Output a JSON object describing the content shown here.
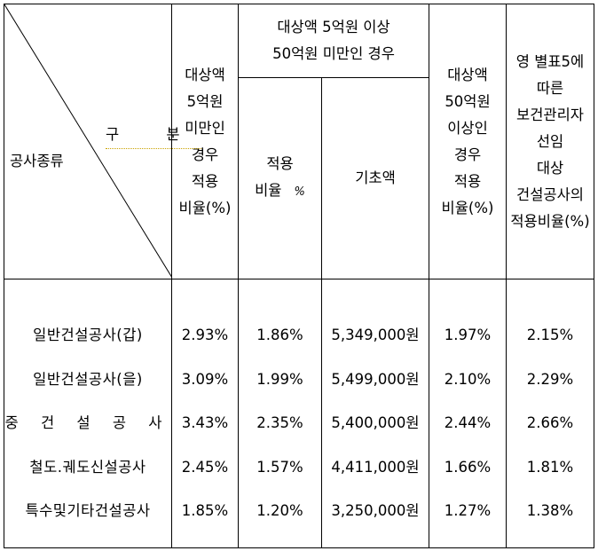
{
  "header": {
    "corner_top": "구 분",
    "corner_bottom": "공사종류",
    "col_under5": "대상액\n5억원\n미만인\n경우\n적용\n비율(%)",
    "col_5to50_group": "대상액 5억원 이상\n50억원 미만인 경우",
    "col_5to50_rate": "적용",
    "col_5to50_rate_sub": "비율",
    "col_5to50_rate_mark": "%",
    "col_5to50_base": "기초액",
    "col_over50": "대상액\n50억원\n이상인\n경우\n적용\n비율(%)",
    "col_annex5": "영 별표5에\n따른\n보건관리자\n선임\n대상\n건설공사의\n적용비율(%)"
  },
  "rows": [
    {
      "category": "일반건설공사(갑)",
      "under5": "2.93%",
      "rate5to50": "1.86%",
      "base": "5,349,000원",
      "over50": "1.97%",
      "annex5": "2.15%"
    },
    {
      "category": "일반건설공사(을)",
      "under5": "3.09%",
      "rate5to50": "1.99%",
      "base": "5,499,000원",
      "over50": "2.10%",
      "annex5": "2.29%"
    },
    {
      "category": "중 건 설 공 사",
      "under5": "3.43%",
      "rate5to50": "2.35%",
      "base": "5,400,000원",
      "over50": "2.44%",
      "annex5": "2.66%"
    },
    {
      "category": "철도.궤도신설공사",
      "under5": "2.45%",
      "rate5to50": "1.57%",
      "base": "4,411,000원",
      "over50": "1.66%",
      "annex5": "1.81%"
    },
    {
      "category": "특수및기타건설공사",
      "under5": "1.85%",
      "rate5to50": "1.20%",
      "base": "3,250,000원",
      "over50": "1.27%",
      "annex5": "1.38%"
    }
  ]
}
